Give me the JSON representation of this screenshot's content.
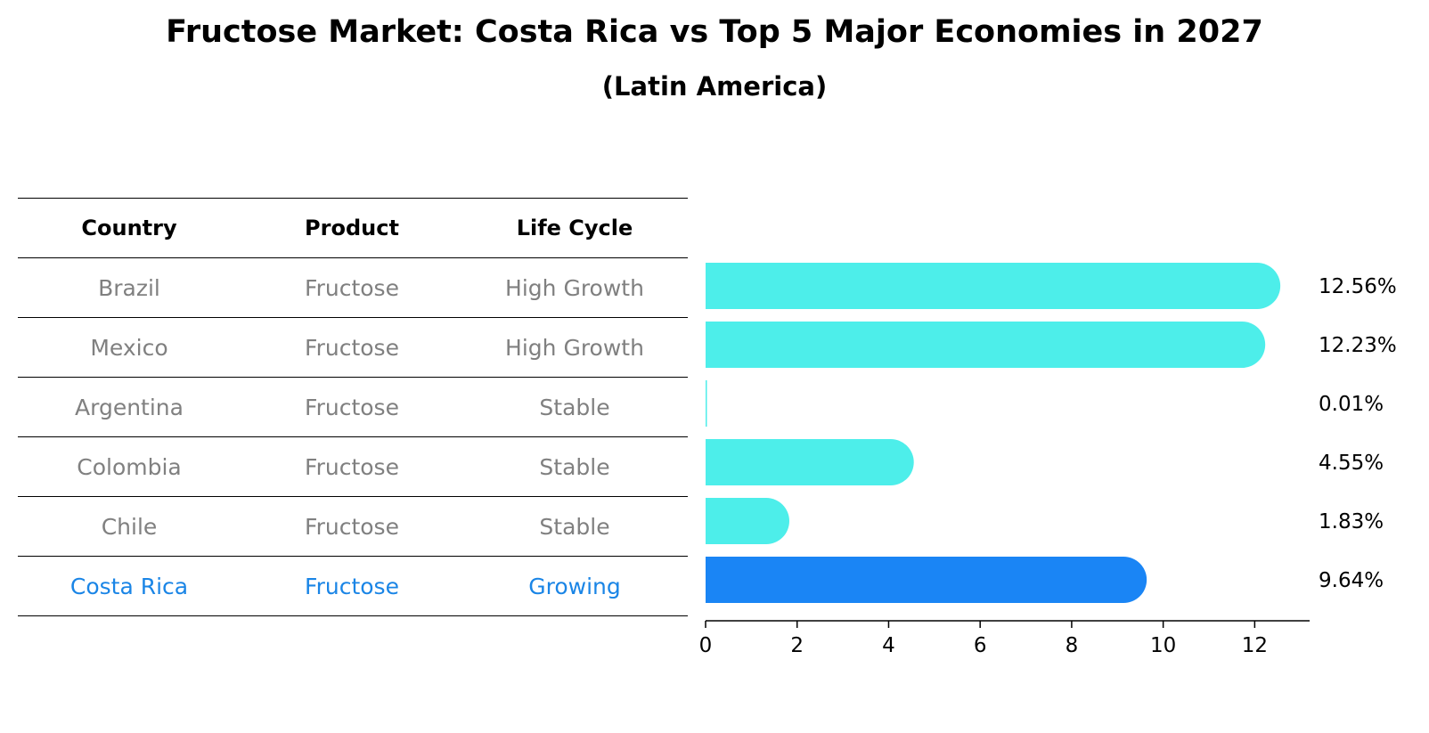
{
  "title": "Fructose Market: Costa Rica vs Top 5 Major Economies in 2027",
  "subtitle": "(Latin America)",
  "table": {
    "headers": [
      "Country",
      "Product",
      "Life Cycle"
    ],
    "rows": [
      [
        "Brazil",
        "Fructose",
        "High Growth"
      ],
      [
        "Mexico",
        "Fructose",
        "High Growth"
      ],
      [
        "Argentina",
        "Fructose",
        "Stable"
      ],
      [
        "Colombia",
        "Fructose",
        "Stable"
      ],
      [
        "Chile",
        "Fructose",
        "Stable"
      ],
      [
        "Costa Rica",
        "Fructose",
        "Growing"
      ]
    ]
  },
  "chart_data": {
    "type": "bar",
    "orientation": "horizontal",
    "categories": [
      "Brazil",
      "Mexico",
      "Argentina",
      "Colombia",
      "Chile",
      "Costa Rica"
    ],
    "values": [
      12.56,
      12.23,
      0.01,
      4.55,
      1.83,
      9.64
    ],
    "value_labels": [
      "12.56%",
      "12.23%",
      "0.01%",
      "4.55%",
      "1.83%",
      "9.64%"
    ],
    "highlight": "Costa Rica",
    "xlim": [
      0,
      13.2
    ],
    "xticks": [
      0,
      2,
      4,
      6,
      8,
      10,
      12
    ],
    "colors": {
      "default": "#4deeea",
      "highlight": "#1a85f5"
    }
  }
}
